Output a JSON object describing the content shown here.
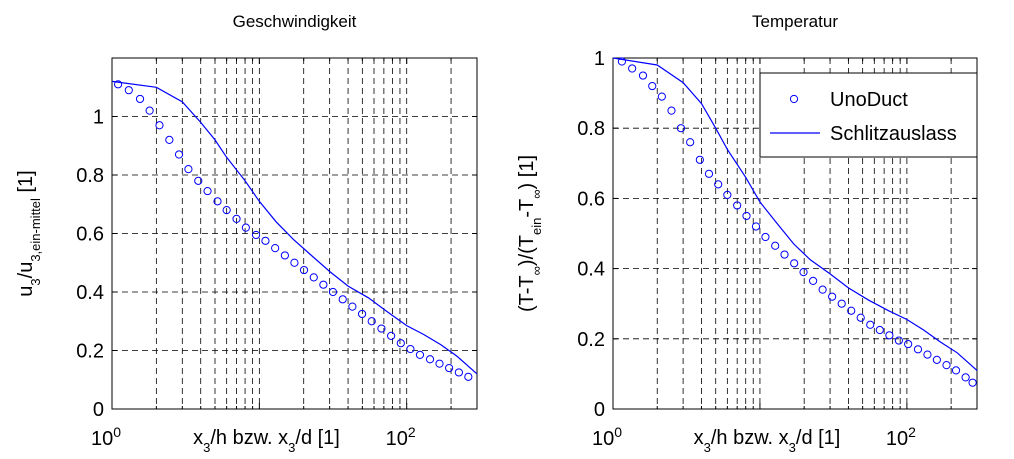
{
  "chart_data": [
    {
      "type": "scatter",
      "title": "Geschwindigkeit",
      "xscale": "log",
      "xlim": [
        1,
        300
      ],
      "ylim": [
        0,
        1.2
      ],
      "x_ticks": [
        {
          "base": "10",
          "exp": "0",
          "value": 1
        },
        {
          "base": "10",
          "exp": "2",
          "value": 100
        }
      ],
      "y_ticks": [
        {
          "value": 0,
          "label": "0"
        },
        {
          "value": 0.2,
          "label": "0.2"
        },
        {
          "value": 0.4,
          "label": "0.4"
        },
        {
          "value": 0.6,
          "label": "0.6"
        },
        {
          "value": 0.8,
          "label": "0.8"
        },
        {
          "value": 1,
          "label": "1"
        }
      ],
      "xlabel": {
        "parts": [
          {
            "t": "x"
          },
          {
            "t": "3",
            "sub": true
          },
          {
            "t": "/h bzw. x"
          },
          {
            "t": "3",
            "sub": true
          },
          {
            "t": "/d [1]"
          }
        ]
      },
      "ylabel": {
        "parts": [
          {
            "t": "u"
          },
          {
            "t": "3",
            "sub": true
          },
          {
            "t": "/u"
          },
          {
            "t": "3,ein-mittel",
            "sub": true
          },
          {
            "t": " [1]"
          }
        ]
      },
      "grid": true,
      "series": [
        {
          "type": "scatter",
          "marker": "circle",
          "color": "#0000ff",
          "x": [
            1.1,
            1.3,
            1.55,
            1.8,
            2.1,
            2.45,
            2.85,
            3.3,
            3.85,
            4.45,
            5.2,
            6.0,
            7.0,
            8.1,
            9.5,
            11,
            12.8,
            14.9,
            17.3,
            20.1,
            23.4,
            27.2,
            31.6,
            36.8,
            42.8,
            49.8,
            57.9,
            67.4,
            78.4,
            91.2,
            106,
            123,
            144,
            167,
            194,
            226,
            262
          ],
          "y": [
            1.11,
            1.09,
            1.06,
            1.02,
            0.97,
            0.92,
            0.87,
            0.82,
            0.78,
            0.745,
            0.71,
            0.68,
            0.65,
            0.62,
            0.595,
            0.575,
            0.55,
            0.525,
            0.5,
            0.475,
            0.45,
            0.425,
            0.4,
            0.375,
            0.35,
            0.325,
            0.3,
            0.275,
            0.25,
            0.225,
            0.205,
            0.185,
            0.17,
            0.155,
            0.14,
            0.125,
            0.11
          ]
        },
        {
          "type": "line",
          "color": "#0000ff",
          "x": [
            1,
            2,
            3,
            4,
            5,
            6,
            8,
            10,
            13,
            17,
            22,
            30,
            40,
            55,
            75,
            100,
            130,
            170,
            220,
            300
          ],
          "y": [
            1.12,
            1.1,
            1.05,
            0.98,
            0.92,
            0.86,
            0.78,
            0.71,
            0.64,
            0.58,
            0.53,
            0.47,
            0.42,
            0.38,
            0.33,
            0.285,
            0.255,
            0.22,
            0.18,
            0.12
          ]
        }
      ]
    },
    {
      "type": "scatter",
      "title": "Temperatur",
      "xscale": "log",
      "xlim": [
        1,
        300
      ],
      "ylim": [
        0,
        1
      ],
      "x_ticks": [
        {
          "base": "10",
          "exp": "0",
          "value": 1
        },
        {
          "base": "10",
          "exp": "2",
          "value": 100
        }
      ],
      "y_ticks": [
        {
          "value": 0,
          "label": "0"
        },
        {
          "value": 0.2,
          "label": "0.2"
        },
        {
          "value": 0.4,
          "label": "0.4"
        },
        {
          "value": 0.6,
          "label": "0.6"
        },
        {
          "value": 0.8,
          "label": "0.8"
        },
        {
          "value": 1,
          "label": "1"
        }
      ],
      "xlabel": {
        "parts": [
          {
            "t": "x"
          },
          {
            "t": "3",
            "sub": true
          },
          {
            "t": "/h bzw. x"
          },
          {
            "t": "3",
            "sub": true
          },
          {
            "t": "/d [1]"
          }
        ]
      },
      "ylabel": {
        "parts": [
          {
            "t": "(T-T"
          },
          {
            "t": "∞",
            "sub": true
          },
          {
            "t": ")/(T"
          },
          {
            "t": "ein",
            "sub": true
          },
          {
            "t": "-T"
          },
          {
            "t": "∞",
            "sub": true
          },
          {
            "t": ") [1]"
          }
        ]
      },
      "grid": true,
      "legend": {
        "placement": "top-right",
        "entries": [
          {
            "label": "UnoDuct",
            "marker": "circle"
          },
          {
            "label": "Schlitzauslass",
            "marker": "line"
          }
        ]
      },
      "series": [
        {
          "type": "scatter",
          "marker": "circle",
          "color": "#0000ff",
          "x": [
            1.15,
            1.35,
            1.6,
            1.85,
            2.15,
            2.5,
            2.9,
            3.35,
            3.9,
            4.5,
            5.2,
            6.0,
            7.0,
            8.1,
            9.4,
            10.9,
            12.7,
            14.7,
            17.1,
            19.8,
            23.0,
            26.7,
            31.0,
            36.0,
            41.8,
            48.5,
            56.3,
            65.4,
            76.0,
            88.2,
            102,
            119,
            138,
            160,
            186,
            216,
            251,
            280
          ],
          "y": [
            0.99,
            0.97,
            0.95,
            0.92,
            0.89,
            0.85,
            0.8,
            0.76,
            0.71,
            0.67,
            0.64,
            0.61,
            0.58,
            0.55,
            0.52,
            0.49,
            0.465,
            0.44,
            0.415,
            0.39,
            0.365,
            0.34,
            0.32,
            0.3,
            0.28,
            0.26,
            0.24,
            0.225,
            0.21,
            0.195,
            0.185,
            0.17,
            0.155,
            0.14,
            0.125,
            0.11,
            0.09,
            0.075
          ]
        },
        {
          "type": "line",
          "color": "#0000ff",
          "x": [
            1,
            2,
            3,
            4,
            5,
            6,
            8,
            10,
            13,
            17,
            22,
            30,
            40,
            55,
            75,
            100,
            130,
            170,
            220,
            300
          ],
          "y": [
            1.0,
            0.98,
            0.93,
            0.87,
            0.8,
            0.74,
            0.66,
            0.59,
            0.53,
            0.47,
            0.425,
            0.385,
            0.345,
            0.31,
            0.28,
            0.255,
            0.225,
            0.19,
            0.16,
            0.11
          ]
        }
      ]
    }
  ]
}
